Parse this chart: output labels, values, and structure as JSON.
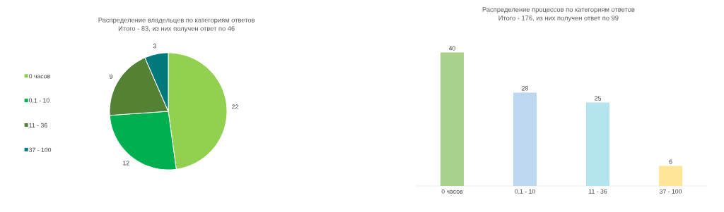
{
  "chart_data": [
    {
      "type": "pie",
      "title": "Распределение владельцев по категориям ответов",
      "subtitle": "Итого - 83, из них получен ответ по 46",
      "categories": [
        "0 часов",
        "0,1 - 10",
        "11 - 36",
        "37 - 100"
      ],
      "values": [
        22,
        12,
        9,
        3
      ],
      "colors": [
        "#92d050",
        "#00b050",
        "#548235",
        "#00797a"
      ],
      "data_labels": true,
      "legend": "left"
    },
    {
      "type": "bar",
      "title": "Распределение процессов по категориям ответов",
      "subtitle": "Итого - 176, из них получен ответ по 99",
      "categories": [
        "0 часов",
        "0,1 - 10",
        "11 - 36",
        "37 - 100"
      ],
      "values": [
        40,
        28,
        25,
        6
      ],
      "colors": [
        "#a9d18e",
        "#bdd7ee",
        "#b4e4ee",
        "#ffe699"
      ],
      "data_labels": true
    }
  ]
}
